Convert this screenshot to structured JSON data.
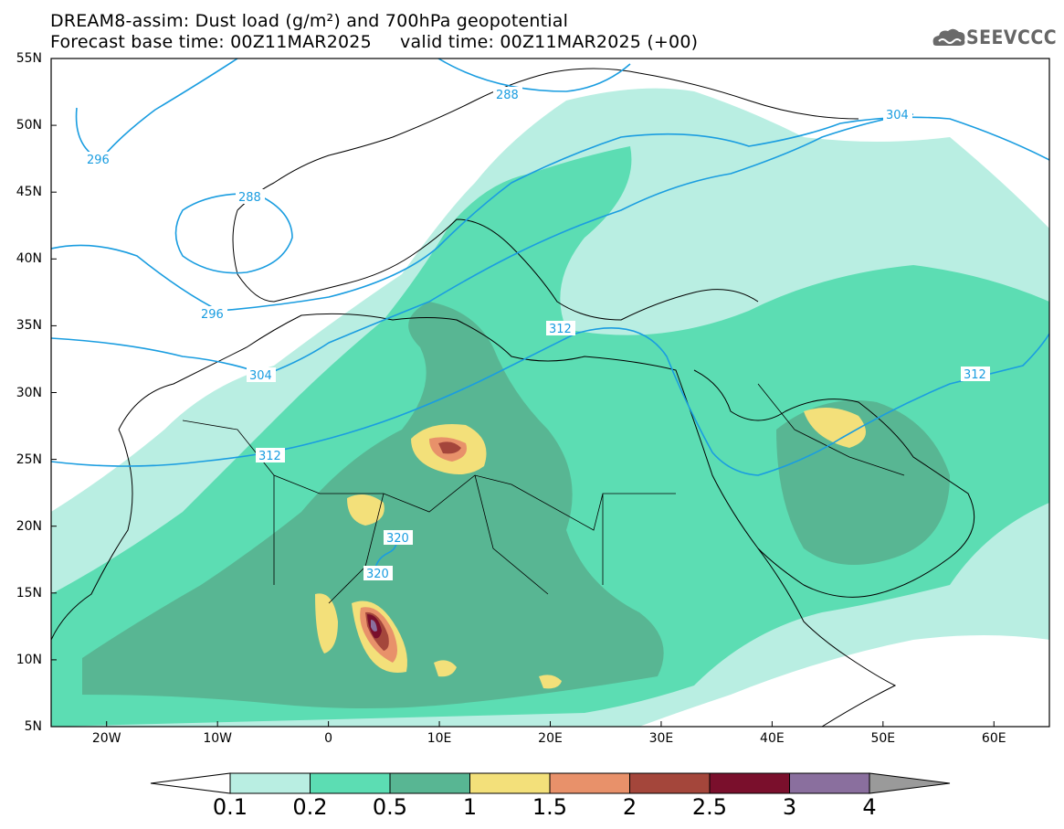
{
  "header": {
    "title_line1": "DREAM8-assim: Dust load (g/m²) and 700hPa geopotential",
    "title_line2": "Forecast base time: 00Z11MAR2025     valid time: 00Z11MAR2025 (+00)",
    "logo_text": "SEEVCCC"
  },
  "map": {
    "lon_range": [
      -25,
      65
    ],
    "lat_range": [
      5,
      55
    ],
    "lat_ticks": [
      "55N",
      "50N",
      "45N",
      "40N",
      "35N",
      "30N",
      "25N",
      "20N",
      "15N",
      "10N",
      "5N"
    ],
    "lon_ticks": [
      "20W",
      "10W",
      "0",
      "10E",
      "20E",
      "30E",
      "40E",
      "50E",
      "60E"
    ],
    "contour_labels": [
      "288",
      "296",
      "288",
      "296",
      "304",
      "304",
      "312",
      "312",
      "320",
      "320",
      "312"
    ]
  },
  "colorbar": {
    "levels": [
      "0.1",
      "0.2",
      "0.5",
      "1",
      "1.5",
      "2",
      "2.5",
      "3",
      "4"
    ],
    "colors": [
      "#ffffff",
      "#b9eee2",
      "#5cddb3",
      "#58b693",
      "#f3e07a",
      "#e8916a",
      "#a4463b",
      "#7a0f2c",
      "#8a6f9e",
      "#9a9a9a"
    ]
  },
  "colors": {
    "background": "#ffffff",
    "geopotential_line": "#1a9de0",
    "coastline": "#000000"
  }
}
